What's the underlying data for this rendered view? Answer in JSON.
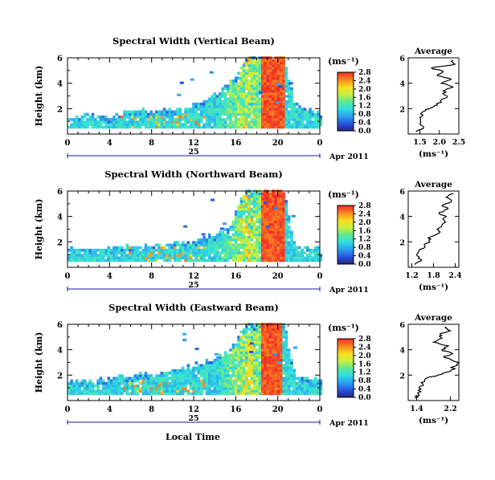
{
  "figure": {
    "x_axis_title": "Local Time",
    "date_label": "Apr 2011",
    "day_label": "25"
  },
  "chart_data": [
    {
      "type": "heatmap",
      "title": "Spectral Width (Vertical Beam)",
      "xlabel": "Local Time",
      "ylabel": "Height (km)",
      "x_ticks": [
        "0",
        "4",
        "8",
        "12",
        "16",
        "20",
        "0"
      ],
      "x_range_hours": [
        0,
        24
      ],
      "y_ticks": [
        "2",
        "4",
        "6"
      ],
      "y_range_km": [
        0,
        6
      ],
      "colorbar": {
        "unit_label": "(ms⁻¹)",
        "ticks": [
          "0.0",
          "0.4",
          "0.8",
          "1.2",
          "1.6",
          "2.0",
          "2.4",
          "2.8"
        ],
        "range": [
          0.0,
          2.8
        ]
      },
      "echo_top_km": [
        {
          "hour": 0,
          "top": 1.3
        },
        {
          "hour": 2,
          "top": 1.4
        },
        {
          "hour": 4,
          "top": 1.3
        },
        {
          "hour": 6,
          "top": 1.9
        },
        {
          "hour": 8,
          "top": 1.7
        },
        {
          "hour": 10,
          "top": 1.8
        },
        {
          "hour": 12,
          "top": 2.2
        },
        {
          "hour": 13,
          "top": 2.6
        },
        {
          "hour": 14,
          "top": 3.1
        },
        {
          "hour": 15.5,
          "top": 4.0
        },
        {
          "hour": 16.5,
          "top": 5.3
        },
        {
          "hour": 17,
          "top": 6.0
        },
        {
          "hour": 18,
          "top": 6.0
        },
        {
          "hour": 20.5,
          "top": 6.0
        },
        {
          "hour": 21.5,
          "top": 2.3
        },
        {
          "hour": 24,
          "top": 1.5
        }
      ],
      "high_width_block_hours": [
        18.2,
        20.5
      ],
      "average_profile": {
        "title": "Average",
        "xlabel": "(ms⁻¹)",
        "x_ticks": [
          "1.5",
          "2.0",
          "2.5"
        ],
        "x_range": [
          1.2,
          2.5
        ],
        "y_ticks": [
          "2",
          "4",
          "6"
        ],
        "y_range_km": [
          0,
          6
        ],
        "height_km": [
          0.2,
          0.5,
          0.9,
          1.3,
          1.7,
          2.0,
          2.3,
          2.7,
          3.0,
          3.4,
          3.7,
          4.0,
          4.3,
          4.6,
          4.9,
          5.2,
          5.5,
          5.8
        ],
        "value": [
          1.4,
          1.6,
          1.52,
          1.5,
          1.55,
          1.75,
          1.95,
          2.05,
          2.2,
          2.1,
          2.35,
          2.05,
          2.3,
          1.95,
          2.1,
          1.8,
          2.4,
          2.35
        ]
      }
    },
    {
      "type": "heatmap",
      "title": "Spectral Width (Northward Beam)",
      "xlabel": "Local Time",
      "ylabel": "Height (km)",
      "x_ticks": [
        "0",
        "4",
        "8",
        "12",
        "16",
        "20",
        "0"
      ],
      "x_range_hours": [
        0,
        24
      ],
      "y_ticks": [
        "2",
        "4",
        "6"
      ],
      "y_range_km": [
        0,
        6
      ],
      "colorbar": {
        "unit_label": "(ms⁻¹)",
        "ticks": [
          "0.0",
          "0.4",
          "0.8",
          "1.2",
          "1.6",
          "2.0",
          "2.4",
          "2.8"
        ],
        "range": [
          0.0,
          2.8
        ]
      },
      "echo_top_km": [
        {
          "hour": 0,
          "top": 1.4
        },
        {
          "hour": 2,
          "top": 1.4
        },
        {
          "hour": 4,
          "top": 1.4
        },
        {
          "hour": 6,
          "top": 1.6
        },
        {
          "hour": 8,
          "top": 1.6
        },
        {
          "hour": 10,
          "top": 1.8
        },
        {
          "hour": 12,
          "top": 1.9
        },
        {
          "hour": 13,
          "top": 2.3
        },
        {
          "hour": 14,
          "top": 2.5
        },
        {
          "hour": 15.5,
          "top": 3.4
        },
        {
          "hour": 16.5,
          "top": 5.5
        },
        {
          "hour": 17,
          "top": 6.0
        },
        {
          "hour": 18,
          "top": 6.0
        },
        {
          "hour": 20.5,
          "top": 6.0
        },
        {
          "hour": 21.5,
          "top": 1.6
        },
        {
          "hour": 24,
          "top": 1.3
        }
      ],
      "high_width_block_hours": [
        18.3,
        20.5
      ],
      "average_profile": {
        "title": "Average",
        "xlabel": "(ms⁻¹)",
        "x_ticks": [
          "1.2",
          "1.8",
          "2.4"
        ],
        "x_range": [
          1.1,
          2.5
        ],
        "y_ticks": [
          "2",
          "4",
          "6"
        ],
        "y_range_km": [
          0,
          6
        ],
        "height_km": [
          0.2,
          0.5,
          0.9,
          1.3,
          1.7,
          2.0,
          2.3,
          2.7,
          3.0,
          3.4,
          3.7,
          4.0,
          4.3,
          4.6,
          4.9,
          5.2,
          5.5,
          5.8
        ],
        "value": [
          1.3,
          1.45,
          1.35,
          1.4,
          1.55,
          1.7,
          1.65,
          1.95,
          1.9,
          2.05,
          2.1,
          2.15,
          1.95,
          2.2,
          2.05,
          2.3,
          2.15,
          2.35
        ]
      }
    },
    {
      "type": "heatmap",
      "title": "Spectral Width (Eastward Beam)",
      "xlabel": "Local Time",
      "ylabel": "Height (km)",
      "x_ticks": [
        "0",
        "4",
        "8",
        "12",
        "16",
        "20",
        "0"
      ],
      "x_range_hours": [
        0,
        24
      ],
      "y_ticks": [
        "2",
        "4",
        "6"
      ],
      "y_range_km": [
        0,
        6
      ],
      "colorbar": {
        "unit_label": "(ms⁻¹)",
        "ticks": [
          "0.0",
          "0.4",
          "0.8",
          "1.2",
          "1.6",
          "2.0",
          "2.4",
          "2.8"
        ],
        "range": [
          0.0,
          2.8
        ]
      },
      "echo_top_km": [
        {
          "hour": 0,
          "top": 1.4
        },
        {
          "hour": 2,
          "top": 1.5
        },
        {
          "hour": 4,
          "top": 1.7
        },
        {
          "hour": 6,
          "top": 1.9
        },
        {
          "hour": 8,
          "top": 2.0
        },
        {
          "hour": 10,
          "top": 2.4
        },
        {
          "hour": 12,
          "top": 2.7
        },
        {
          "hour": 13,
          "top": 3.0
        },
        {
          "hour": 14,
          "top": 3.3
        },
        {
          "hour": 15.5,
          "top": 4.0
        },
        {
          "hour": 16.5,
          "top": 5.5
        },
        {
          "hour": 17,
          "top": 6.0
        },
        {
          "hour": 18,
          "top": 6.0
        },
        {
          "hour": 20.5,
          "top": 6.0
        },
        {
          "hour": 21.5,
          "top": 1.9
        },
        {
          "hour": 24,
          "top": 1.6
        }
      ],
      "high_width_block_hours": [
        18.3,
        20.3
      ],
      "average_profile": {
        "title": "Average",
        "xlabel": "(ms⁻¹)",
        "x_ticks": [
          "1.4",
          "2.2"
        ],
        "x_range": [
          1.2,
          2.4
        ],
        "y_ticks": [
          "2",
          "4",
          "6"
        ],
        "y_range_km": [
          0,
          6
        ],
        "height_km": [
          0.2,
          0.5,
          0.9,
          1.3,
          1.7,
          2.0,
          2.3,
          2.7,
          3.0,
          3.4,
          3.7,
          4.0,
          4.3,
          4.6,
          4.9,
          5.2,
          5.5,
          5.8
        ],
        "value": [
          1.35,
          1.45,
          1.5,
          1.55,
          1.6,
          1.9,
          2.2,
          2.3,
          2.4,
          2.05,
          2.25,
          2.0,
          2.15,
          1.8,
          2.0,
          1.95,
          2.2,
          2.1
        ]
      }
    }
  ]
}
